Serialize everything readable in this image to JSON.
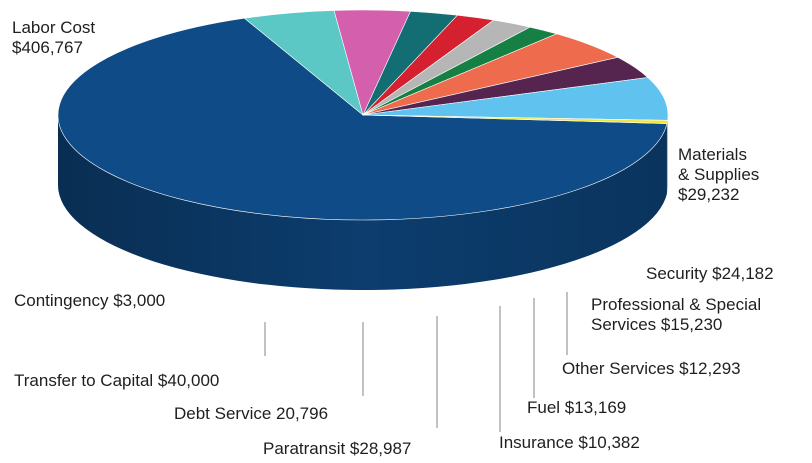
{
  "chart_data": {
    "type": "pie",
    "title": "",
    "style": "3d",
    "legend": "none",
    "slices": [
      {
        "name": "Labor Cost",
        "label_lines": [
          "Labor Cost",
          "$406,767"
        ],
        "value": 406767,
        "color": "#0f4b86"
      },
      {
        "name": "Materials & Supplies",
        "label_lines": [
          "Materials",
          "& Supplies",
          "$29,232"
        ],
        "value": 29232,
        "color": "#5cc8c6"
      },
      {
        "name": "Security",
        "label_lines": [
          "Security $24,182"
        ],
        "value": 24182,
        "color": "#d45fac"
      },
      {
        "name": "Professional & Special Services",
        "label_lines": [
          "Professional & Special",
          "Services $15,230"
        ],
        "value": 15230,
        "color": "#136e73"
      },
      {
        "name": "Other Services",
        "label_lines": [
          "Other Services $12,293"
        ],
        "value": 12293,
        "color": "#d5202f"
      },
      {
        "name": "Fuel",
        "label_lines": [
          "Fuel $13,169"
        ],
        "value": 13169,
        "color": "#b6b6b6"
      },
      {
        "name": "Insurance",
        "label_lines": [
          "Insurance $10,382"
        ],
        "value": 10382,
        "color": "#168044"
      },
      {
        "name": "Paratransit",
        "label_lines": [
          "Paratransit $28,987"
        ],
        "value": 28987,
        "color": "#ee6b4d"
      },
      {
        "name": "Debt Service",
        "label_lines": [
          "Debt Service 20,796"
        ],
        "value": 20796,
        "color": "#55254f"
      },
      {
        "name": "Transfer to Capital",
        "label_lines": [
          "Transfer to Capital $40,000"
        ],
        "value": 40000,
        "color": "#5fc2ef"
      },
      {
        "name": "Contingency",
        "label_lines": [
          "Contingency $3,000"
        ],
        "value": 3000,
        "color": "#f2e63a"
      }
    ]
  }
}
